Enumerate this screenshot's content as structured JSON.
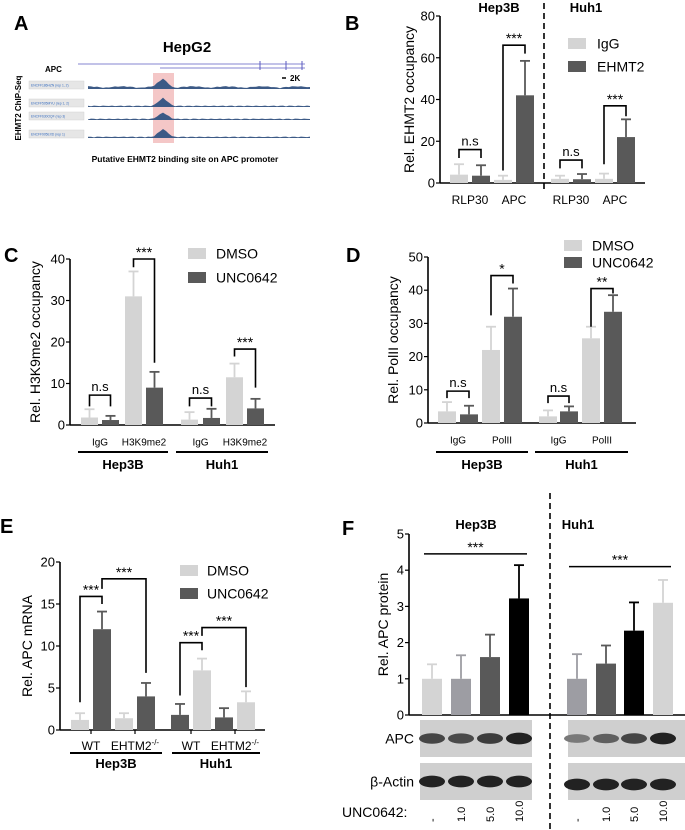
{
  "panel_a": {
    "letter": "A",
    "title": "HepG2",
    "gene_label": "APC",
    "scale_label": "2K",
    "side_label": "EHMT2 ChIP-Seq",
    "tracks": [
      "ENCFF186HZN (rep 1, 2)",
      "ENCFF505MYU (rep 1, 2)",
      "ENCFF630OQF (rep 3)",
      "ENCFF905EXD (rep 1)"
    ],
    "caption": "Putative EHMT2 binding site on APC promoter",
    "highlight_color": "#f4c7c7",
    "track_color": "#3c5a86"
  },
  "chart_data": [
    {
      "panel": "B",
      "type": "bar",
      "ylabel": "Rel. EHMT2 occupancy",
      "ylim": [
        0,
        80
      ],
      "yticks": [
        0,
        20,
        40,
        60,
        80
      ],
      "legend_placement": "top-right",
      "grid": false,
      "series": [
        {
          "name": "IgG",
          "color": "#d4d4d4"
        },
        {
          "name": "EHMT2",
          "color": "#595959"
        }
      ],
      "groups": [
        {
          "name": "Hep3B",
          "categories": [
            {
              "label": "RLP30",
              "values": [
                4,
                3.5
              ],
              "errors": [
                5,
                5
              ]
            },
            {
              "label": "APC",
              "values": [
                1.5,
                42
              ],
              "errors": [
                2,
                16.5
              ]
            }
          ]
        },
        {
          "name": "Huh1",
          "categories": [
            {
              "label": "RLP30",
              "values": [
                2,
                1.8
              ],
              "errors": [
                1.5,
                2.5
              ]
            },
            {
              "label": "APC",
              "values": [
                2,
                22
              ],
              "errors": [
                2.5,
                8.5
              ]
            }
          ]
        }
      ],
      "annotations": [
        {
          "group": 0,
          "bars": [
            0,
            1
          ],
          "text": "n.s",
          "level": 16,
          "legs": [
            12,
            12
          ]
        },
        {
          "group": 0,
          "bars": [
            2,
            3
          ],
          "text": "***",
          "level": 66,
          "legs": [
            6,
            62
          ]
        },
        {
          "group": 1,
          "bars": [
            0,
            1
          ],
          "text": "n.s",
          "level": 11,
          "legs": [
            7,
            7
          ]
        },
        {
          "group": 1,
          "bars": [
            2,
            3
          ],
          "text": "***",
          "level": 37,
          "legs": [
            9,
            32
          ]
        }
      ]
    },
    {
      "panel": "C",
      "type": "bar",
      "ylabel": "Rel. H3K9me2 occupancy",
      "ylim": [
        0,
        40
      ],
      "yticks": [
        0,
        10,
        20,
        30,
        40
      ],
      "legend_placement": "top-right",
      "grid": false,
      "series": [
        {
          "name": "DMSO",
          "color": "#d4d4d4"
        },
        {
          "name": "UNC0642",
          "color": "#595959"
        }
      ],
      "groups": [
        {
          "name": "Hep3B",
          "categories": [
            {
              "label": "IgG",
              "values": [
                1.8,
                1.2
              ],
              "errors": [
                2,
                1
              ]
            },
            {
              "label": "H3K9me2",
              "values": [
                31,
                9
              ],
              "errors": [
                6,
                3.8
              ]
            }
          ]
        },
        {
          "name": "Huh1",
          "categories": [
            {
              "label": "IgG",
              "values": [
                1.3,
                1.7
              ],
              "errors": [
                1.8,
                2.2
              ]
            },
            {
              "label": "H3K9me2",
              "values": [
                11.5,
                4
              ],
              "errors": [
                3.3,
                2.3
              ]
            }
          ]
        }
      ],
      "annotations": [
        {
          "group": 0,
          "bars": [
            0,
            1
          ],
          "text": "n.s",
          "level": 7.2,
          "legs": [
            4.5,
            4.5
          ]
        },
        {
          "group": 0,
          "bars": [
            2,
            3
          ],
          "text": "***",
          "level": 40,
          "legs": [
            38,
            15
          ]
        },
        {
          "group": 1,
          "bars": [
            0,
            1
          ],
          "text": "n.s",
          "level": 6.5,
          "legs": [
            4.5,
            4.5
          ]
        },
        {
          "group": 1,
          "bars": [
            2,
            3
          ],
          "text": "***",
          "level": 18.3,
          "legs": [
            16.5,
            9
          ]
        }
      ]
    },
    {
      "panel": "D",
      "type": "bar",
      "ylabel": "Rel. PolII occupancy",
      "ylim": [
        0,
        50
      ],
      "yticks": [
        0,
        10,
        20,
        30,
        40,
        50
      ],
      "legend_placement": "top-right",
      "grid": false,
      "series": [
        {
          "name": "DMSO",
          "color": "#d4d4d4"
        },
        {
          "name": "UNC0642",
          "color": "#595959"
        }
      ],
      "groups": [
        {
          "name": "Hep3B",
          "categories": [
            {
              "label": "IgG",
              "values": [
                3.5,
                2.6
              ],
              "errors": [
                2.8,
                2.6
              ]
            },
            {
              "label": "PolII",
              "values": [
                22,
                32
              ],
              "errors": [
                7,
                8.5
              ]
            }
          ]
        },
        {
          "name": "Huh1",
          "categories": [
            {
              "label": "IgG",
              "values": [
                2,
                3.5
              ],
              "errors": [
                1.8,
                1.5
              ]
            },
            {
              "label": "PolII",
              "values": [
                25.5,
                33.5
              ],
              "errors": [
                3.5,
                5
              ]
            }
          ]
        }
      ],
      "annotations": [
        {
          "group": 0,
          "bars": [
            0,
            1
          ],
          "text": "n.s",
          "level": 9.6,
          "legs": [
            7.5,
            7.5
          ]
        },
        {
          "group": 0,
          "bars": [
            2,
            3
          ],
          "text": "*",
          "level": 44.4,
          "legs": [
            32.4,
            42
          ]
        },
        {
          "group": 1,
          "bars": [
            0,
            1
          ],
          "text": "n.s",
          "level": 8.1,
          "legs": [
            6,
            6
          ]
        },
        {
          "group": 1,
          "bars": [
            2,
            3
          ],
          "text": "**",
          "level": 40.5,
          "legs": [
            29,
            39
          ]
        }
      ]
    },
    {
      "panel": "E",
      "type": "bar",
      "ylabel": "Rel. APC mRNA",
      "ylim": [
        0,
        20
      ],
      "yticks": [
        0,
        5,
        10,
        15,
        20
      ],
      "legend_placement": "top-right",
      "grid": false,
      "series": [
        {
          "name": "DMSO",
          "color": "#d4d4d4"
        },
        {
          "name": "UNC0642",
          "color": "#595959"
        }
      ],
      "groups": [
        {
          "name": "Hep3B",
          "categories": [
            {
              "label": "WT",
              "values": [
                1.2,
                12
              ],
              "errors": [
                0.8,
                2.1
              ]
            },
            {
              "label": "EHTM2",
              "label_sup": "-/-",
              "values": [
                1.4,
                4
              ],
              "errors": [
                0.6,
                1.6
              ]
            }
          ]
        },
        {
          "name": "Huh1",
          "bar_colors": [
            "#595959",
            "#d4d4d4"
          ],
          "categories": [
            {
              "label": "WT",
              "values": [
                1.8,
                7.1
              ],
              "errors": [
                1.3,
                1.4
              ]
            },
            {
              "label": "EHTM2",
              "label_sup": "-/-",
              "values": [
                1.5,
                3.3
              ],
              "errors": [
                1.1,
                1.3
              ]
            }
          ]
        }
      ],
      "annotations": [
        {
          "group": 0,
          "bars": [
            0,
            1
          ],
          "text": "***",
          "level": 15.9,
          "legs": [
            3.3,
            15
          ]
        },
        {
          "group": 0,
          "bars": [
            1,
            3
          ],
          "text": "***",
          "level": 18,
          "legs": [
            16.8,
            6.8
          ]
        },
        {
          "group": 1,
          "bars": [
            0,
            1
          ],
          "text": "***",
          "level": 10.4,
          "legs": [
            4.1,
            9.5
          ]
        },
        {
          "group": 1,
          "bars": [
            1,
            3
          ],
          "text": "***",
          "level": 12.2,
          "legs": [
            11.2,
            5.1
          ]
        }
      ]
    },
    {
      "panel": "F",
      "type": "bar",
      "ylabel": "Rel. APC protein",
      "ylim": [
        0,
        5
      ],
      "yticks": [
        0,
        1,
        2,
        3,
        4,
        5
      ],
      "grid": false,
      "treatment_label": "UNC0642:",
      "treatments": [
        "-",
        "1.0",
        "5.0",
        "10.0"
      ],
      "blot_labels": [
        "APC",
        "β-Actin"
      ],
      "groups": [
        {
          "name": "Hep3B",
          "values": [
            1,
            1,
            1.6,
            3.22
          ],
          "errors": [
            0.4,
            0.65,
            0.62,
            0.92
          ],
          "bar_colors": [
            "#d4d4d4",
            "#9d9da3",
            "#595959",
            "#000000"
          ]
        },
        {
          "name": "Huh1",
          "values": [
            1,
            1.42,
            2.33,
            3.1
          ],
          "errors": [
            0.68,
            0.5,
            0.78,
            0.63
          ],
          "bar_colors": [
            "#9d9da3",
            "#595959",
            "#000000",
            "#d4d4d4"
          ]
        }
      ],
      "annotations": [
        {
          "group": 0,
          "bars": [
            0,
            3
          ],
          "text": "***",
          "level": 4.45,
          "type": "line"
        },
        {
          "group": 1,
          "bars": [
            0,
            3
          ],
          "text": "***",
          "level": 4.1,
          "type": "line"
        }
      ],
      "apc_band_intensity": [
        [
          0.75,
          0.72,
          0.8,
          0.95
        ],
        [
          0.45,
          0.6,
          0.75,
          0.95
        ]
      ]
    }
  ]
}
